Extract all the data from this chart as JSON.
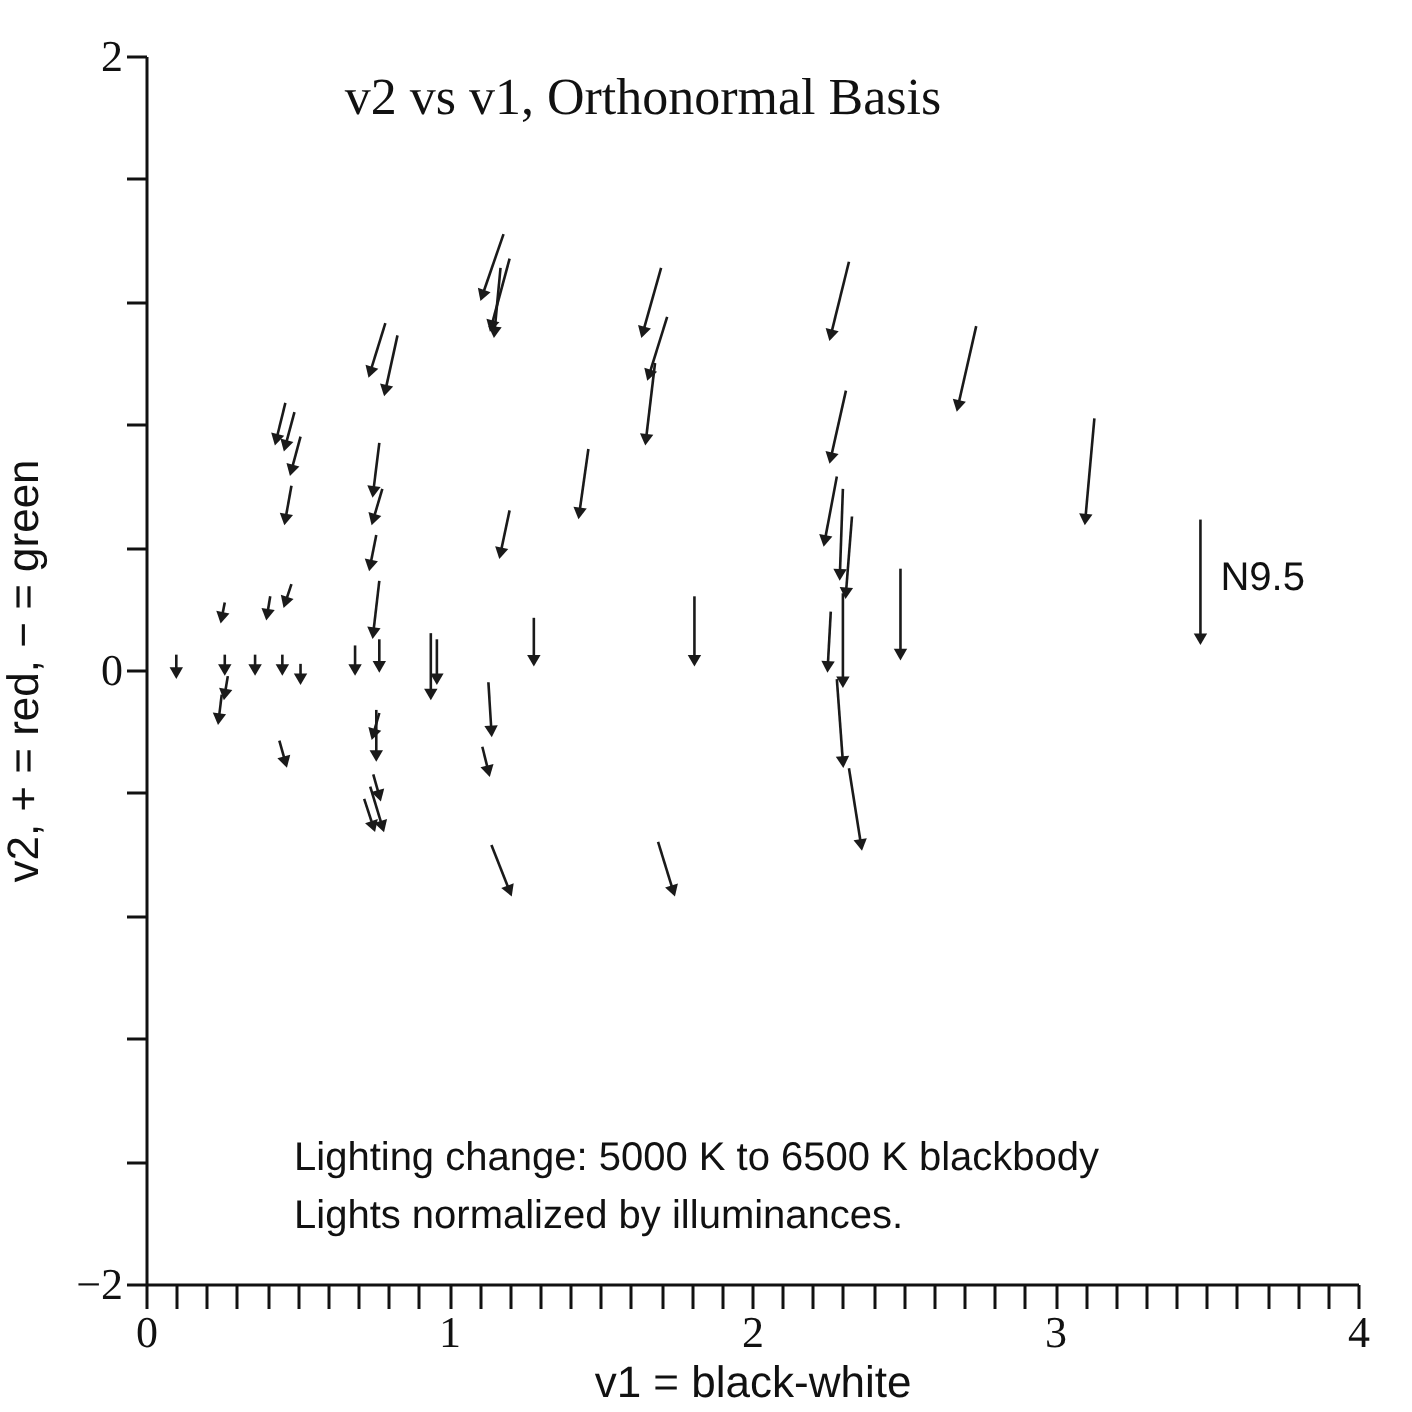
{
  "chart_data": {
    "type": "line",
    "title": "v2 vs v1, Orthonormal Basis",
    "xlabel": "v1 = black-white",
    "ylabel": "v2, + = red, − = green",
    "xlim": [
      0,
      4
    ],
    "ylim": [
      -2,
      2
    ],
    "xticks": [
      0,
      {
        "value": 0.1,
        "label": null
      },
      {
        "value": 0.2,
        "label": null
      },
      {
        "value": 0.3,
        "label": null
      },
      {
        "value": 0.4,
        "label": null
      },
      {
        "value": 0.5,
        "label": null
      },
      {
        "value": 0.6,
        "label": null
      },
      {
        "value": 0.7,
        "label": null
      },
      {
        "value": 0.8,
        "label": null
      },
      {
        "value": 0.9,
        "label": null
      },
      1,
      {
        "value": 1.1,
        "label": null
      },
      {
        "value": 1.2,
        "label": null
      },
      {
        "value": 1.3,
        "label": null
      },
      {
        "value": 1.4,
        "label": null
      },
      {
        "value": 1.5,
        "label": null
      },
      {
        "value": 1.6,
        "label": null
      },
      {
        "value": 1.7,
        "label": null
      },
      {
        "value": 1.8,
        "label": null
      },
      {
        "value": 1.9,
        "label": null
      },
      2,
      {
        "value": 2.1,
        "label": null
      },
      {
        "value": 2.2,
        "label": null
      },
      {
        "value": 2.3,
        "label": null
      },
      {
        "value": 2.4,
        "label": null
      },
      {
        "value": 2.5,
        "label": null
      },
      {
        "value": 2.6,
        "label": null
      },
      {
        "value": 2.7,
        "label": null
      },
      {
        "value": 2.8,
        "label": null
      },
      {
        "value": 2.9,
        "label": null
      },
      3,
      {
        "value": 3.1,
        "label": null
      },
      {
        "value": 3.2,
        "label": null
      },
      {
        "value": 3.3,
        "label": null
      },
      {
        "value": 3.4,
        "label": null
      },
      {
        "value": 3.5,
        "label": null
      },
      {
        "value": 3.6,
        "label": null
      },
      {
        "value": 3.7,
        "label": null
      },
      {
        "value": 3.8,
        "label": null
      },
      {
        "value": 3.9,
        "label": null
      },
      4
    ],
    "yticks": [
      {
        "value": -2,
        "label": "−2"
      },
      {
        "value": -1.6,
        "label": null
      },
      {
        "value": -1.2,
        "label": null
      },
      {
        "value": -0.8,
        "label": null
      },
      {
        "value": -0.4,
        "label": null
      },
      0,
      {
        "value": 0.4,
        "label": null
      },
      {
        "value": 0.8,
        "label": null
      },
      {
        "value": 1.2,
        "label": null
      },
      {
        "value": 1.6,
        "label": null
      },
      2
    ],
    "grid": false,
    "line_style": "solid",
    "annotations": [
      {
        "text": "N9.5",
        "x": 3.48,
        "y": 0.3
      },
      "Lighting change: 5000 K to 6500 K blackbody",
      "Lights normalized by illuminances."
    ],
    "series": [
      {
        "color": "#1a1a1a",
        "x": [
          0.1,
          0.1
        ],
        "values": [
          0.05,
          -0.01
        ]
      },
      {
        "color": "#1a1a1a",
        "x": [
          0.26,
          0.25
        ],
        "values": [
          0.22,
          0.17
        ]
      },
      {
        "color": "#1a1a1a",
        "x": [
          0.26,
          0.26
        ],
        "values": [
          0.05,
          0
        ]
      },
      {
        "color": "#1a1a1a",
        "x": [
          0.27,
          0.26
        ],
        "values": [
          -0.02,
          -0.08
        ]
      },
      {
        "color": "#1a1a1a",
        "x": [
          0.25,
          0.24
        ],
        "values": [
          -0.08,
          -0.16
        ]
      },
      {
        "color": "#1a1a1a",
        "x": [
          0.36,
          0.36
        ],
        "values": [
          0.05,
          0
        ]
      },
      {
        "color": "#1a1a1a",
        "x": [
          0.41,
          0.4
        ],
        "values": [
          0.24,
          0.18
        ]
      },
      {
        "color": "#1a1a1a",
        "x": [
          0.48,
          0.46
        ],
        "values": [
          0.28,
          0.22
        ]
      },
      {
        "color": "#1a1a1a",
        "x": [
          0.45,
          0.45
        ],
        "values": [
          0.05,
          0
        ]
      },
      {
        "color": "#1a1a1a",
        "x": [
          0.51,
          0.51
        ],
        "values": [
          0.02,
          -0.03
        ]
      },
      {
        "color": "#1a1a1a",
        "x": [
          0.44,
          0.46
        ],
        "values": [
          -0.23,
          -0.3
        ]
      },
      {
        "color": "#1a1a1a",
        "x": [
          0.46,
          0.43
        ],
        "values": [
          0.87,
          0.75
        ]
      },
      {
        "color": "#1a1a1a",
        "x": [
          0.49,
          0.46
        ],
        "values": [
          0.84,
          0.73
        ]
      },
      {
        "color": "#1a1a1a",
        "x": [
          0.51,
          0.48
        ],
        "values": [
          0.76,
          0.65
        ]
      },
      {
        "color": "#1a1a1a",
        "x": [
          0.48,
          0.46
        ],
        "values": [
          0.6,
          0.49
        ]
      },
      {
        "color": "#1a1a1a",
        "x": [
          0.77,
          0.75
        ],
        "values": [
          0.74,
          0.58
        ]
      },
      {
        "color": "#1a1a1a",
        "x": [
          0.78,
          0.75
        ],
        "values": [
          0.59,
          0.49
        ]
      },
      {
        "color": "#1a1a1a",
        "x": [
          0.76,
          0.74
        ],
        "values": [
          0.44,
          0.34
        ]
      },
      {
        "color": "#1a1a1a",
        "x": [
          0.77,
          0.75
        ],
        "values": [
          0.29,
          0.12
        ]
      },
      {
        "color": "#1a1a1a",
        "x": [
          0.69,
          0.69
        ],
        "values": [
          0.08,
          0
        ]
      },
      {
        "color": "#1a1a1a",
        "x": [
          0.77,
          0.77
        ],
        "values": [
          0.1,
          0.01
        ]
      },
      {
        "color": "#1a1a1a",
        "x": [
          0.76,
          0.76
        ],
        "values": [
          -0.13,
          -0.28
        ]
      },
      {
        "color": "#1a1a1a",
        "x": [
          0.77,
          0.75
        ],
        "values": [
          -0.14,
          -0.21
        ]
      },
      {
        "color": "#1a1a1a",
        "x": [
          0.75,
          0.77
        ],
        "values": [
          -0.34,
          -0.41
        ]
      },
      {
        "color": "#1a1a1a",
        "x": [
          0.72,
          0.75
        ],
        "values": [
          -0.42,
          -0.51
        ]
      },
      {
        "color": "#1a1a1a",
        "x": [
          0.74,
          0.78
        ],
        "values": [
          -0.38,
          -0.51
        ]
      },
      {
        "color": "#1a1a1a",
        "x": [
          0.79,
          0.74
        ],
        "values": [
          1.13,
          0.97
        ]
      },
      {
        "color": "#1a1a1a",
        "x": [
          0.83,
          0.79
        ],
        "values": [
          1.09,
          0.91
        ]
      },
      {
        "color": "#1a1a1a",
        "x": [
          1.18,
          1.11
        ],
        "values": [
          1.42,
          1.22
        ]
      },
      {
        "color": "#1a1a1a",
        "x": [
          1.2,
          1.14
        ],
        "values": [
          1.34,
          1.12
        ]
      },
      {
        "color": "#1a1a1a",
        "x": [
          1.17,
          1.15
        ],
        "values": [
          1.31,
          1.1
        ]
      },
      {
        "color": "#1a1a1a",
        "x": [
          1.2,
          1.17
        ],
        "values": [
          0.52,
          0.38
        ]
      },
      {
        "color": "#1a1a1a",
        "x": [
          1.13,
          1.14
        ],
        "values": [
          -0.04,
          -0.2
        ]
      },
      {
        "color": "#1a1a1a",
        "x": [
          1.11,
          1.13
        ],
        "values": [
          -0.25,
          -0.33
        ]
      },
      {
        "color": "#1a1a1a",
        "x": [
          1.14,
          1.2
        ],
        "values": [
          -0.57,
          -0.72
        ]
      },
      {
        "color": "#1a1a1a",
        "x": [
          0.94,
          0.94
        ],
        "values": [
          0.12,
          -0.08
        ]
      },
      {
        "color": "#1a1a1a",
        "x": [
          0.96,
          0.96
        ],
        "values": [
          0.1,
          -0.03
        ]
      },
      {
        "color": "#1a1a1a",
        "x": [
          1.28,
          1.28
        ],
        "values": [
          0.17,
          0.03
        ]
      },
      {
        "color": "#1a1a1a",
        "x": [
          1.46,
          1.43
        ],
        "values": [
          0.72,
          0.51
        ]
      },
      {
        "color": "#1a1a1a",
        "x": [
          1.7,
          1.64
        ],
        "values": [
          1.31,
          1.1
        ]
      },
      {
        "color": "#1a1a1a",
        "x": [
          1.72,
          1.66
        ],
        "values": [
          1.15,
          0.96
        ]
      },
      {
        "color": "#1a1a1a",
        "x": [
          1.68,
          1.65
        ],
        "values": [
          1.0,
          0.75
        ]
      },
      {
        "color": "#1a1a1a",
        "x": [
          1.81,
          1.81
        ],
        "values": [
          0.24,
          0.03
        ]
      },
      {
        "color": "#1a1a1a",
        "x": [
          1.69,
          1.74
        ],
        "values": [
          -0.56,
          -0.72
        ]
      },
      {
        "color": "#1a1a1a",
        "x": [
          2.32,
          2.26
        ],
        "values": [
          1.33,
          1.09
        ]
      },
      {
        "color": "#1a1a1a",
        "x": [
          2.74,
          2.68
        ],
        "values": [
          1.12,
          0.86
        ]
      },
      {
        "color": "#1a1a1a",
        "x": [
          2.31,
          2.26
        ],
        "values": [
          0.91,
          0.69
        ]
      },
      {
        "color": "#1a1a1a",
        "x": [
          2.28,
          2.24
        ],
        "values": [
          0.63,
          0.42
        ]
      },
      {
        "color": "#1a1a1a",
        "x": [
          2.3,
          2.29
        ],
        "values": [
          0.59,
          0.31
        ]
      },
      {
        "color": "#1a1a1a",
        "x": [
          2.33,
          2.31
        ],
        "values": [
          0.5,
          0.25
        ]
      },
      {
        "color": "#1a1a1a",
        "x": [
          2.49,
          2.49
        ],
        "values": [
          0.33,
          0.05
        ]
      },
      {
        "color": "#1a1a1a",
        "x": [
          2.26,
          2.25
        ],
        "values": [
          0.19,
          0.01
        ]
      },
      {
        "color": "#1a1a1a",
        "x": [
          2.3,
          2.3
        ],
        "values": [
          0.25,
          -0.04
        ]
      },
      {
        "color": "#1a1a1a",
        "x": [
          2.28,
          2.3
        ],
        "values": [
          -0.03,
          -0.3
        ]
      },
      {
        "color": "#1a1a1a",
        "x": [
          2.32,
          2.36
        ],
        "values": [
          -0.32,
          -0.57
        ]
      },
      {
        "color": "#1a1a1a",
        "x": [
          3.13,
          3.1
        ],
        "values": [
          0.82,
          0.49
        ]
      },
      {
        "color": "#1a1a1a",
        "x": [
          3.48,
          3.48
        ],
        "values": [
          0.49,
          0.1
        ]
      }
    ]
  }
}
